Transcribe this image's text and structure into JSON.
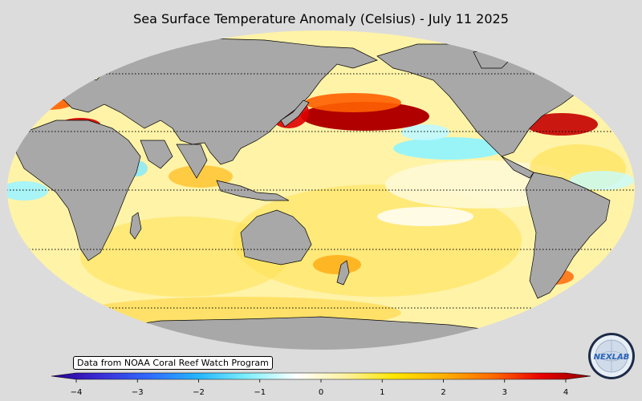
{
  "title": "Sea Surface Temperature Anomaly (Celsius) - July 11 2025",
  "credit": "Data from NOAA Coral Reef Watch Program",
  "colorbar": {
    "min": -4,
    "max": 4,
    "ticks": [
      "−4",
      "−3",
      "−2",
      "−1",
      "0",
      "1",
      "2",
      "3",
      "4"
    ],
    "colors": [
      "#2a0090",
      "#3b2dd6",
      "#2f6cff",
      "#25b6ff",
      "#7ff0ff",
      "#ffffff",
      "#fff2a0",
      "#ffe600",
      "#ffb000",
      "#ff6a00",
      "#e80000",
      "#8e0000"
    ]
  },
  "logo": {
    "text": "NEXLAB",
    "icon": "nexlab-globe-logo"
  },
  "colors": {
    "background": "#dcdcdc",
    "land": "#a8a8a8",
    "ocean_base": "#fff3a8"
  }
}
